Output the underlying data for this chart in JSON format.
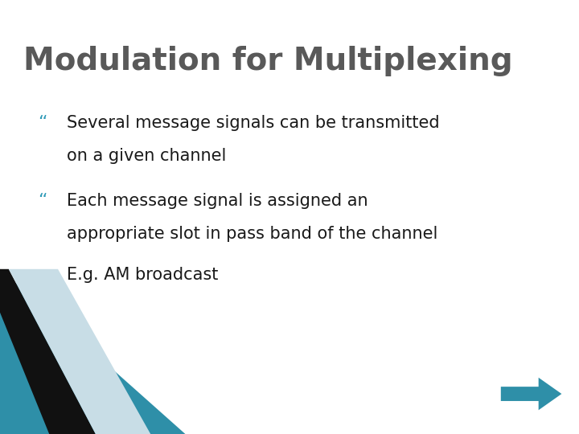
{
  "title": "Modulation for Multiplexing",
  "title_color": "#595959",
  "title_fontsize": 28,
  "bullet_char": "“",
  "bullet_color": "#2E9AB7",
  "bullet_fontsize": 15,
  "bullet_items": [
    [
      "Several message signals can be transmitted",
      "on a given channel"
    ],
    [
      "Each message signal is assigned an",
      "appropriate slot in pass band of the channel"
    ]
  ],
  "extra_text": "E.g. AM broadcast",
  "extra_text_fontsize": 15,
  "background_color": "#FFFFFF",
  "body_text_color": "#1a1a1a",
  "stripe_teal": "#2E8FA8",
  "stripe_black": "#111111",
  "stripe_light": "#C8DDE6",
  "arrow_color": "#2E8FA8"
}
